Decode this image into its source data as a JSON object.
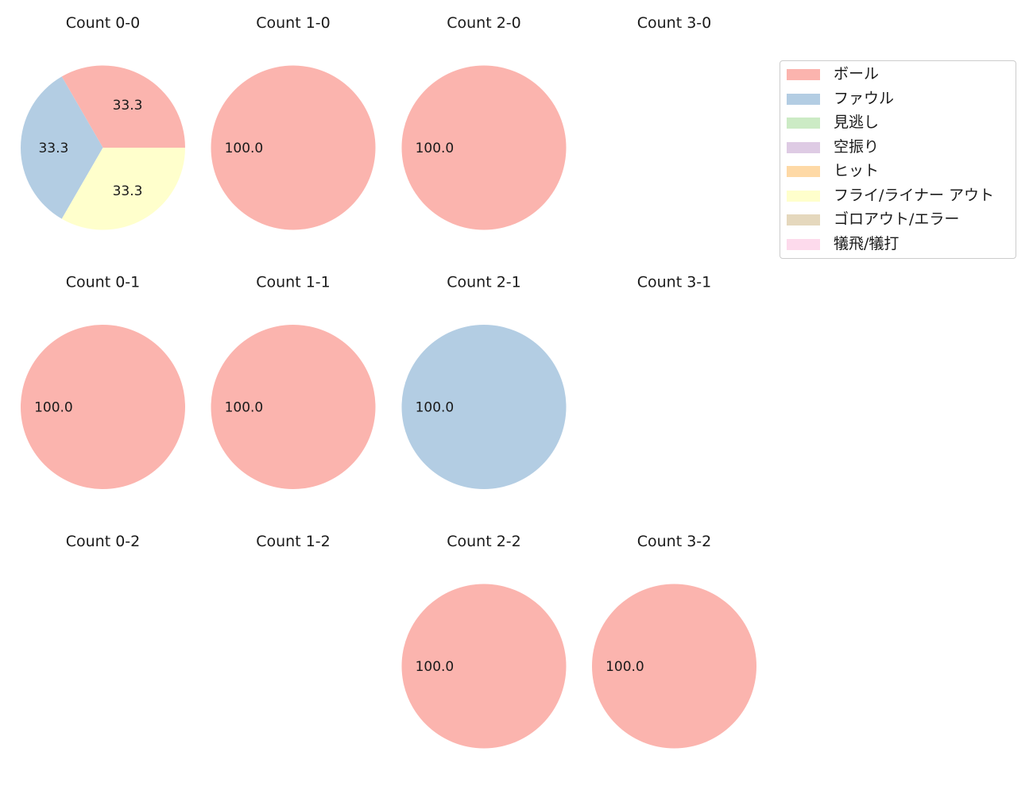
{
  "legend": [
    {
      "label": "ボール",
      "color": "#fbb4ae"
    },
    {
      "label": "ファウル",
      "color": "#b3cde3"
    },
    {
      "label": "見逃し",
      "color": "#ccebc5"
    },
    {
      "label": "空振り",
      "color": "#decbe4"
    },
    {
      "label": "ヒット",
      "color": "#fed9a6"
    },
    {
      "label": "フライ/ライナー アウト",
      "color": "#ffffcc"
    },
    {
      "label": "ゴロアウト/エラー",
      "color": "#e5d8bd"
    },
    {
      "label": "犠飛/犠打",
      "color": "#fddaec"
    }
  ],
  "chart_data": [
    {
      "type": "pie",
      "title": "Count 0-0",
      "slices": [
        {
          "category": "ボール",
          "value": 33.3,
          "label": "33.3"
        },
        {
          "category": "ファウル",
          "value": 33.3,
          "label": "33.3"
        },
        {
          "category": "フライ/ライナー アウト",
          "value": 33.3,
          "label": "33.3"
        }
      ]
    },
    {
      "type": "pie",
      "title": "Count 1-0",
      "slices": [
        {
          "category": "ボール",
          "value": 100.0,
          "label": "100.0"
        }
      ]
    },
    {
      "type": "pie",
      "title": "Count 2-0",
      "slices": [
        {
          "category": "ボール",
          "value": 100.0,
          "label": "100.0"
        }
      ]
    },
    {
      "type": "pie",
      "title": "Count 3-0",
      "slices": []
    },
    {
      "type": "pie",
      "title": "Count 0-1",
      "slices": [
        {
          "category": "ボール",
          "value": 100.0,
          "label": "100.0"
        }
      ]
    },
    {
      "type": "pie",
      "title": "Count 1-1",
      "slices": [
        {
          "category": "ボール",
          "value": 100.0,
          "label": "100.0"
        }
      ]
    },
    {
      "type": "pie",
      "title": "Count 2-1",
      "slices": [
        {
          "category": "ファウル",
          "value": 100.0,
          "label": "100.0"
        }
      ]
    },
    {
      "type": "pie",
      "title": "Count 3-1",
      "slices": []
    },
    {
      "type": "pie",
      "title": "Count 0-2",
      "slices": []
    },
    {
      "type": "pie",
      "title": "Count 1-2",
      "slices": []
    },
    {
      "type": "pie",
      "title": "Count 2-2",
      "slices": [
        {
          "category": "ボール",
          "value": 100.0,
          "label": "100.0"
        }
      ]
    },
    {
      "type": "pie",
      "title": "Count 3-2",
      "slices": [
        {
          "category": "ボール",
          "value": 100.0,
          "label": "100.0"
        }
      ]
    }
  ]
}
